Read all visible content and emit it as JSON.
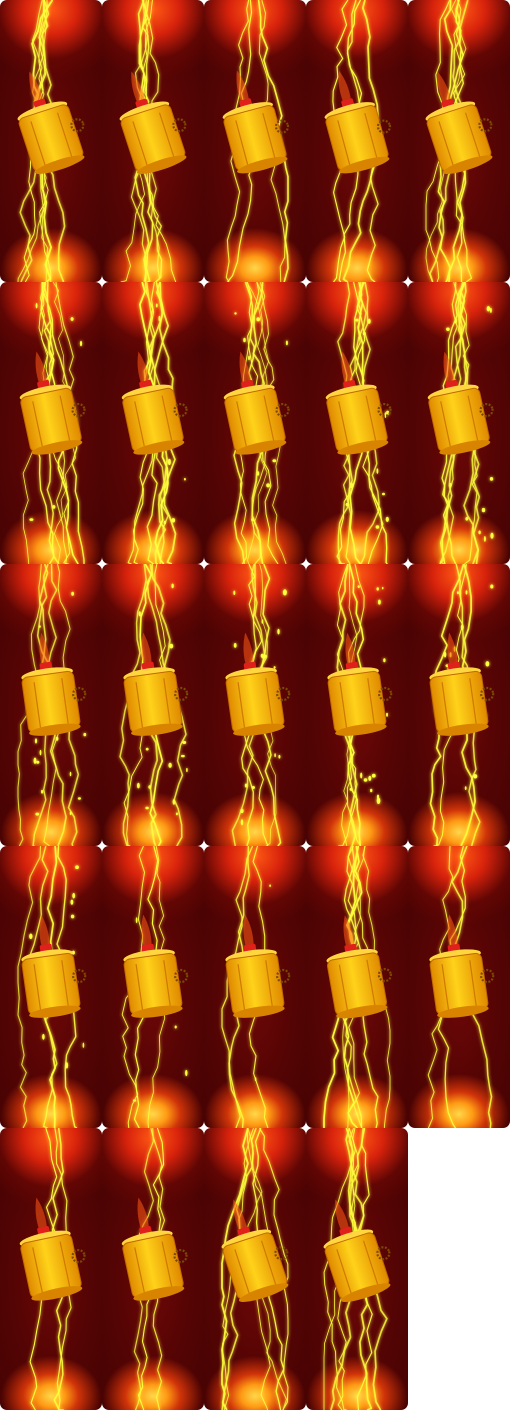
{
  "sprite_sheet": {
    "columns": 5,
    "rows": 5,
    "frame_count": 24,
    "empty_cells": 1,
    "subject": "battery",
    "effect": "lightning",
    "colors": {
      "background_dark": "#4a0303",
      "glow_red": "#d8230c",
      "glow_orange": "#ff9a14",
      "glow_yellow": "#ffd84a",
      "lightning": "#ffff3c",
      "battery_body": "#ffb400",
      "battery_shade": "#e08a00",
      "battery_cap": "#e0201a"
    },
    "frames": [
      {
        "tilt": -18,
        "bolts": 7,
        "dots": 0
      },
      {
        "tilt": -18,
        "bolts": 7,
        "dots": 0
      },
      {
        "tilt": -15,
        "bolts": 4,
        "dots": 0
      },
      {
        "tilt": -15,
        "bolts": 4,
        "dots": 0
      },
      {
        "tilt": -18,
        "bolts": 7,
        "dots": 0
      },
      {
        "tilt": -12,
        "bolts": 8,
        "dots": 6
      },
      {
        "tilt": -12,
        "bolts": 7,
        "dots": 8
      },
      {
        "tilt": -12,
        "bolts": 7,
        "dots": 10
      },
      {
        "tilt": -12,
        "bolts": 7,
        "dots": 12
      },
      {
        "tilt": -12,
        "bolts": 7,
        "dots": 14
      },
      {
        "tilt": -8,
        "bolts": 5,
        "dots": 16
      },
      {
        "tilt": -8,
        "bolts": 5,
        "dots": 16
      },
      {
        "tilt": -8,
        "bolts": 5,
        "dots": 18
      },
      {
        "tilt": -8,
        "bolts": 5,
        "dots": 18
      },
      {
        "tilt": -8,
        "bolts": 4,
        "dots": 14
      },
      {
        "tilt": -8,
        "bolts": 4,
        "dots": 10
      },
      {
        "tilt": -8,
        "bolts": 3,
        "dots": 4
      },
      {
        "tilt": -8,
        "bolts": 3,
        "dots": 2
      },
      {
        "tilt": -10,
        "bolts": 7,
        "dots": 0
      },
      {
        "tilt": -8,
        "bolts": 3,
        "dots": 0
      },
      {
        "tilt": -12,
        "bolts": 3,
        "dots": 0
      },
      {
        "tilt": -12,
        "bolts": 3,
        "dots": 0
      },
      {
        "tilt": -18,
        "bolts": 7,
        "dots": 0
      },
      {
        "tilt": -18,
        "bolts": 7,
        "dots": 0
      }
    ]
  }
}
